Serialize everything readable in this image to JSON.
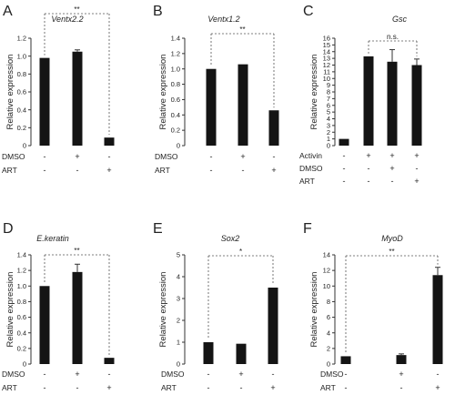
{
  "chart_data": [
    {
      "type": "bar",
      "panel": "A",
      "title": "Ventx2.2",
      "ylabel": "Relative expression",
      "ylim": [
        0,
        1.2
      ],
      "yticks": [
        "0",
        "0.2",
        "0.4",
        "0.6",
        "0.8",
        "1.0",
        "1.2"
      ],
      "values": [
        0.98,
        1.05,
        0.09
      ],
      "errors": [
        0,
        0.02,
        0
      ],
      "rows": [
        {
          "label": "DMSO",
          "symbols": [
            "-",
            "+",
            "-"
          ]
        },
        {
          "label": "ART",
          "symbols": [
            "-",
            "-",
            "+"
          ]
        }
      ],
      "significance": {
        "from": 0,
        "to": 2,
        "label": "**"
      }
    },
    {
      "type": "bar",
      "panel": "B",
      "title": "Ventx1.2",
      "ylabel": "Relative expression",
      "ylim": [
        0,
        1.4
      ],
      "yticks": [
        "0",
        "0.2",
        "0.4",
        "0.6",
        "0.8",
        "1.0",
        "1.2",
        "1.4"
      ],
      "values": [
        1.0,
        1.06,
        0.46
      ],
      "errors": [
        0,
        0,
        0
      ],
      "rows": [
        {
          "label": "DMSO",
          "symbols": [
            "-",
            "+",
            "-"
          ]
        },
        {
          "label": "ART",
          "symbols": [
            "-",
            "-",
            "+"
          ]
        }
      ],
      "significance": {
        "from": 0,
        "to": 2,
        "label": "**"
      }
    },
    {
      "type": "bar",
      "panel": "C",
      "title": "Gsc",
      "ylabel": "Relative expression",
      "ylim": [
        0,
        16
      ],
      "yticks": [
        "0",
        "1",
        "2",
        "3",
        "4",
        "5",
        "6",
        "7",
        "8",
        "9",
        "10",
        "11",
        "12",
        "13",
        "14",
        "15",
        "16"
      ],
      "values": [
        1.0,
        13.3,
        12.5,
        12.0
      ],
      "errors": [
        0,
        0,
        1.8,
        0.9
      ],
      "rows": [
        {
          "label": "Activin",
          "symbols": [
            "-",
            "+",
            "+",
            "+"
          ]
        },
        {
          "label": "DMSO",
          "symbols": [
            "-",
            "-",
            "+",
            "-"
          ]
        },
        {
          "label": "ART",
          "symbols": [
            "-",
            "-",
            "-",
            "+"
          ]
        }
      ],
      "significance": {
        "from": 1,
        "to": 3,
        "label": "n.s."
      }
    },
    {
      "type": "bar",
      "panel": "D",
      "title": "E.keratin",
      "ylabel": "Relative expression",
      "ylim": [
        0,
        1.4
      ],
      "yticks": [
        "0",
        "0.2",
        "0.4",
        "0.6",
        "0.8",
        "1.0",
        "1.2",
        "1.4"
      ],
      "values": [
        1.0,
        1.18,
        0.08
      ],
      "errors": [
        0,
        0.1,
        0
      ],
      "rows": [
        {
          "label": "DMSO",
          "symbols": [
            "-",
            "+",
            "-"
          ]
        },
        {
          "label": "ART",
          "symbols": [
            "-",
            "-",
            "+"
          ]
        }
      ],
      "significance": {
        "from": 0,
        "to": 2,
        "label": "**"
      }
    },
    {
      "type": "bar",
      "panel": "E",
      "title": "Sox2",
      "ylabel": "Relative expression",
      "ylim": [
        0,
        5
      ],
      "yticks": [
        "0",
        "1",
        "2",
        "3",
        "4",
        "5"
      ],
      "values": [
        1.0,
        0.93,
        3.5
      ],
      "errors": [
        0,
        0,
        0
      ],
      "rows": [
        {
          "label": "DMSO",
          "symbols": [
            "-",
            "+",
            "-"
          ]
        },
        {
          "label": "ART",
          "symbols": [
            "-",
            "-",
            "+"
          ]
        }
      ],
      "significance": {
        "from": 0,
        "to": 2,
        "label": "*"
      }
    },
    {
      "type": "bar",
      "panel": "F",
      "title": "MyoD",
      "ylabel": "Relative expression",
      "ylim": [
        0,
        14
      ],
      "yticks": [
        "0",
        "2",
        "4",
        "6",
        "8",
        "10",
        "12",
        "14"
      ],
      "values": [
        1.0,
        1.15,
        11.4
      ],
      "errors": [
        0,
        0.15,
        1.0
      ],
      "rows": [
        {
          "label": "DMSO",
          "symbols": [
            "-",
            "+",
            "-"
          ]
        },
        {
          "label": "ART",
          "symbols": [
            "-",
            "-",
            "+"
          ]
        }
      ],
      "significance": {
        "from": 0,
        "to": 2,
        "label": "**"
      }
    }
  ]
}
